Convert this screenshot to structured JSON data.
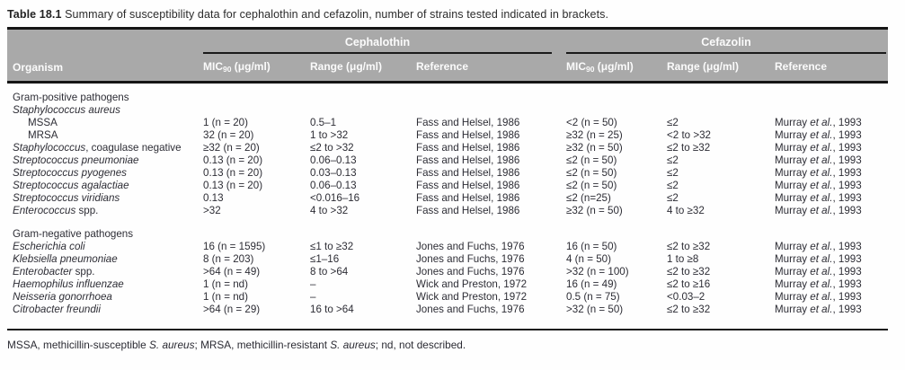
{
  "title": {
    "label": "Table 18.1",
    "text": " Summary of susceptibility data for cephalothin and cefazolin, number of strains tested indicated in brackets."
  },
  "colors": {
    "header_bg": "#a9a9a9",
    "header_text": "#fbfbfb",
    "body_text": "#2d2d35",
    "rule": "#161616"
  },
  "header": {
    "organism": "Organism",
    "group_cephalothin": "Cephalothin",
    "group_cefazolin": "Cefazolin",
    "mic_prefix": "MIC",
    "mic_sub": "90",
    "mic_unit": " (μg/ml)",
    "range_label": "Range (μg/ml)",
    "reference_label": "Reference"
  },
  "rows": [
    {
      "name_i": "",
      "name_r": "Gram-positive pathogens"
    },
    {
      "name_i": "Staphylococcus aureus",
      "name_r": ""
    },
    {
      "name_i": "",
      "name_r": "MSSA",
      "c_mic": "1 (n = 20)",
      "c_range": "0.5–1",
      "c_ref": "Fass and Helsel, 1986",
      "z_mic": "<2 (n = 50)",
      "z_range": "≤2",
      "z_ref_a": "Murray ",
      "z_ref_i": "et al.",
      "z_ref_b": ", 1993"
    },
    {
      "name_i": "",
      "name_r": "MRSA",
      "c_mic": "32 (n = 20)",
      "c_range": "1 to >32",
      "c_ref": "Fass and Helsel, 1986",
      "z_mic": "≥32 (n = 25)",
      "z_range": "<2 to >32",
      "z_ref_a": "Murray ",
      "z_ref_i": "et al.",
      "z_ref_b": ", 1993"
    },
    {
      "name_i": "Staphylococcus",
      "name_r": ", coagulase negative",
      "c_mic": "≥32 (n = 20)",
      "c_range": "≤2 to >32",
      "c_ref": "Fass and Helsel, 1986",
      "z_mic": "≥32 (n = 50)",
      "z_range": "≤2 to ≥32",
      "z_ref_a": "Murray ",
      "z_ref_i": "et al.",
      "z_ref_b": ", 1993"
    },
    {
      "name_i": "Streptococcus pneumoniae",
      "name_r": "",
      "c_mic": "0.13 (n = 20)",
      "c_range": "0.06–0.13",
      "c_ref": "Fass and Helsel, 1986",
      "z_mic": "≤2 (n = 50)",
      "z_range": "≤2",
      "z_ref_a": "Murray ",
      "z_ref_i": "et al.",
      "z_ref_b": ", 1993"
    },
    {
      "name_i": "Streptococcus pyogenes",
      "name_r": "",
      "c_mic": "0.13 (n = 20)",
      "c_range": "0.03–0.13",
      "c_ref": "Fass and Helsel, 1986",
      "z_mic": "≤2 (n = 50)",
      "z_range": "≤2",
      "z_ref_a": "Murray ",
      "z_ref_i": "et al.",
      "z_ref_b": ", 1993"
    },
    {
      "name_i": "Streptococcus agalactiae",
      "name_r": "",
      "c_mic": "0.13 (n = 20)",
      "c_range": "0.06–0.13",
      "c_ref": "Fass and Helsel, 1986",
      "z_mic": "≤2 (n = 50)",
      "z_range": "≤2",
      "z_ref_a": "Murray ",
      "z_ref_i": "et al.",
      "z_ref_b": ", 1993"
    },
    {
      "name_i": "Streptococcus viridians",
      "name_r": "",
      "c_mic": "0.13",
      "c_range": "<0.016–16",
      "c_ref": "Fass and Helsel, 1986",
      "z_mic": "≤2 (n=25)",
      "z_range": "≤2",
      "z_ref_a": "Murray ",
      "z_ref_i": "et al.",
      "z_ref_b": ", 1993"
    },
    {
      "name_i": "Enterococcus",
      "name_r": " spp.",
      "c_mic": ">32",
      "c_range": "4 to >32",
      "c_ref": "Fass and Helsel, 1986",
      "z_mic": "≥32 (n = 50)",
      "z_range": "4 to ≥32",
      "z_ref_a": "Murray ",
      "z_ref_i": "et al.",
      "z_ref_b": ", 1993"
    },
    {
      "name_i": "",
      "name_r": "Gram-negative pathogens"
    },
    {
      "name_i": "Escherichia coli",
      "name_r": "",
      "c_mic": "16 (n = 1595)",
      "c_range": "≤1 to ≥32",
      "c_ref": "Jones and Fuchs, 1976",
      "z_mic": "16 (n = 50)",
      "z_range": "≤2 to ≥32",
      "z_ref_a": "Murray ",
      "z_ref_i": "et al.",
      "z_ref_b": ", 1993"
    },
    {
      "name_i": "Klebsiella pneumoniae",
      "name_r": "",
      "c_mic": "8 (n = 203)",
      "c_range": "≤1–16",
      "c_ref": "Jones and Fuchs, 1976",
      "z_mic": "4 (n = 50)",
      "z_range": "1 to ≥8",
      "z_ref_a": "Murray ",
      "z_ref_i": "et al.",
      "z_ref_b": ", 1993"
    },
    {
      "name_i": "Enterobacter",
      "name_r": " spp.",
      "c_mic": ">64 (n = 49)",
      "c_range": "8 to >64",
      "c_ref": "Jones and Fuchs, 1976",
      "z_mic": ">32 (n = 100)",
      "z_range": "≤2 to ≥32",
      "z_ref_a": "Murray ",
      "z_ref_i": "et al.",
      "z_ref_b": ", 1993"
    },
    {
      "name_i": "Haemophilus influenzae",
      "name_r": "",
      "c_mic": "1 (n = nd)",
      "c_range": "–",
      "c_ref": "Wick and Preston, 1972",
      "z_mic": "16 (n = 49)",
      "z_range": "≤2 to ≥16",
      "z_ref_a": "Murray ",
      "z_ref_i": "et al.",
      "z_ref_b": ", 1993"
    },
    {
      "name_i": "Neisseria gonorrhoea",
      "name_r": "",
      "c_mic": "1 (n = nd)",
      "c_range": "–",
      "c_ref": "Wick and Preston, 1972",
      "z_mic": "0.5 (n = 75)",
      "z_range": "<0.03–2",
      "z_ref_a": "Murray ",
      "z_ref_i": "et al.",
      "z_ref_b": ", 1993"
    },
    {
      "name_i": "Citrobacter freundii",
      "name_r": "",
      "c_mic": ">64 (n = 29)",
      "c_range": "16 to >64",
      "c_ref": "Jones and Fuchs, 1976",
      "z_mic": ">32 (n = 50)",
      "z_range": "≤2 to ≥32",
      "z_ref_a": "Murray ",
      "z_ref_i": "et al.",
      "z_ref_b": ", 1993"
    }
  ],
  "footnote": {
    "p1": "MSSA, methicillin-susceptible ",
    "i1": "S. aureus",
    "p2": "; MRSA, methicillin-resistant ",
    "i2": "S. aureus",
    "p3": "; nd, not described."
  }
}
